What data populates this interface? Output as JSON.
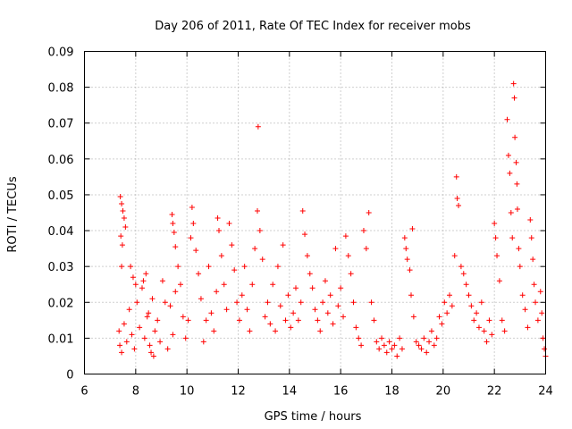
{
  "chart_data": {
    "type": "scatter",
    "title": "Day 206 of 2011, Rate Of TEC Index for receiver mobs",
    "xlabel": "GPS time / hours",
    "ylabel": "ROTI / TECUs",
    "xlim": [
      6,
      24
    ],
    "ylim": [
      0,
      0.09
    ],
    "xticks": [
      6,
      8,
      10,
      12,
      14,
      16,
      18,
      20,
      22,
      24
    ],
    "yticks": [
      0,
      0.01,
      0.02,
      0.03,
      0.04,
      0.05,
      0.06,
      0.07,
      0.08,
      0.09
    ],
    "xtick_labels": [
      "6",
      "8",
      "10",
      "12",
      "14",
      "16",
      "18",
      "20",
      "22",
      "24"
    ],
    "ytick_labels": [
      "0",
      "0.01",
      "0.02",
      "0.03",
      "0.04",
      "0.05",
      "0.06",
      "0.07",
      "0.08",
      "0.09"
    ],
    "grid": true,
    "marker": "+",
    "color": "#ff0000",
    "series": [
      {
        "name": "mobs",
        "points": [
          [
            7.4,
            0.0495
          ],
          [
            7.45,
            0.0475
          ],
          [
            7.5,
            0.0455
          ],
          [
            7.55,
            0.0435
          ],
          [
            7.6,
            0.041
          ],
          [
            7.42,
            0.0385
          ],
          [
            7.48,
            0.036
          ],
          [
            7.45,
            0.03
          ],
          [
            7.35,
            0.012
          ],
          [
            7.38,
            0.008
          ],
          [
            7.45,
            0.006
          ],
          [
            7.55,
            0.014
          ],
          [
            7.65,
            0.009
          ],
          [
            7.75,
            0.018
          ],
          [
            7.85,
            0.011
          ],
          [
            7.95,
            0.007
          ],
          [
            8.05,
            0.02
          ],
          [
            8.15,
            0.013
          ],
          [
            8.25,
            0.024
          ],
          [
            8.35,
            0.01
          ],
          [
            8.45,
            0.016
          ],
          [
            8.55,
            0.008
          ],
          [
            8.65,
            0.021
          ],
          [
            8.75,
            0.012
          ],
          [
            7.8,
            0.03
          ],
          [
            7.9,
            0.027
          ],
          [
            8.0,
            0.025
          ],
          [
            8.3,
            0.026
          ],
          [
            8.4,
            0.028
          ],
          [
            8.5,
            0.017
          ],
          [
            8.6,
            0.006
          ],
          [
            8.7,
            0.005
          ],
          [
            8.85,
            0.015
          ],
          [
            8.95,
            0.009
          ],
          [
            9.05,
            0.026
          ],
          [
            9.15,
            0.02
          ],
          [
            9.25,
            0.007
          ],
          [
            9.35,
            0.019
          ],
          [
            9.45,
            0.011
          ],
          [
            9.55,
            0.023
          ],
          [
            9.42,
            0.0445
          ],
          [
            9.45,
            0.042
          ],
          [
            9.5,
            0.0395
          ],
          [
            9.55,
            0.0355
          ],
          [
            9.65,
            0.03
          ],
          [
            9.75,
            0.025
          ],
          [
            9.85,
            0.016
          ],
          [
            9.95,
            0.01
          ],
          [
            10.05,
            0.015
          ],
          [
            10.15,
            0.038
          ],
          [
            10.2,
            0.0465
          ],
          [
            10.25,
            0.042
          ],
          [
            10.35,
            0.0345
          ],
          [
            10.45,
            0.028
          ],
          [
            10.55,
            0.021
          ],
          [
            10.65,
            0.009
          ],
          [
            10.75,
            0.015
          ],
          [
            10.85,
            0.03
          ],
          [
            10.95,
            0.017
          ],
          [
            11.05,
            0.012
          ],
          [
            11.15,
            0.023
          ],
          [
            11.2,
            0.0435
          ],
          [
            11.25,
            0.04
          ],
          [
            11.35,
            0.033
          ],
          [
            11.45,
            0.025
          ],
          [
            11.55,
            0.018
          ],
          [
            11.65,
            0.042
          ],
          [
            11.75,
            0.036
          ],
          [
            11.85,
            0.029
          ],
          [
            11.95,
            0.02
          ],
          [
            12.05,
            0.015
          ],
          [
            12.15,
            0.022
          ],
          [
            12.25,
            0.03
          ],
          [
            12.35,
            0.018
          ],
          [
            12.45,
            0.012
          ],
          [
            12.55,
            0.025
          ],
          [
            12.65,
            0.035
          ],
          [
            12.75,
            0.0455
          ],
          [
            12.78,
            0.069
          ],
          [
            12.85,
            0.04
          ],
          [
            12.95,
            0.032
          ],
          [
            13.05,
            0.016
          ],
          [
            13.15,
            0.02
          ],
          [
            13.25,
            0.014
          ],
          [
            13.35,
            0.025
          ],
          [
            13.45,
            0.012
          ],
          [
            13.55,
            0.03
          ],
          [
            13.65,
            0.019
          ],
          [
            13.75,
            0.036
          ],
          [
            13.85,
            0.015
          ],
          [
            13.95,
            0.022
          ],
          [
            14.05,
            0.013
          ],
          [
            14.15,
            0.017
          ],
          [
            14.25,
            0.024
          ],
          [
            14.35,
            0.015
          ],
          [
            14.45,
            0.02
          ],
          [
            14.52,
            0.0455
          ],
          [
            14.6,
            0.039
          ],
          [
            14.7,
            0.033
          ],
          [
            14.8,
            0.028
          ],
          [
            14.9,
            0.024
          ],
          [
            15.0,
            0.018
          ],
          [
            15.1,
            0.015
          ],
          [
            15.2,
            0.012
          ],
          [
            15.3,
            0.02
          ],
          [
            15.4,
            0.026
          ],
          [
            15.5,
            0.017
          ],
          [
            15.6,
            0.022
          ],
          [
            15.7,
            0.014
          ],
          [
            15.8,
            0.035
          ],
          [
            15.9,
            0.019
          ],
          [
            16.0,
            0.024
          ],
          [
            16.1,
            0.016
          ],
          [
            16.2,
            0.0385
          ],
          [
            16.3,
            0.033
          ],
          [
            16.4,
            0.028
          ],
          [
            16.5,
            0.02
          ],
          [
            16.6,
            0.013
          ],
          [
            16.7,
            0.01
          ],
          [
            16.8,
            0.008
          ],
          [
            16.9,
            0.04
          ],
          [
            17.0,
            0.035
          ],
          [
            17.1,
            0.045
          ],
          [
            17.2,
            0.02
          ],
          [
            17.3,
            0.015
          ],
          [
            17.4,
            0.009
          ],
          [
            17.5,
            0.007
          ],
          [
            17.6,
            0.01
          ],
          [
            17.7,
            0.008
          ],
          [
            17.8,
            0.006
          ],
          [
            17.9,
            0.009
          ],
          [
            18.0,
            0.007
          ],
          [
            18.1,
            0.008
          ],
          [
            18.2,
            0.005
          ],
          [
            18.3,
            0.01
          ],
          [
            18.4,
            0.007
          ],
          [
            18.5,
            0.038
          ],
          [
            18.55,
            0.035
          ],
          [
            18.6,
            0.032
          ],
          [
            18.7,
            0.029
          ],
          [
            18.8,
            0.0405
          ],
          [
            18.75,
            0.022
          ],
          [
            18.85,
            0.016
          ],
          [
            18.95,
            0.009
          ],
          [
            19.05,
            0.008
          ],
          [
            19.15,
            0.007
          ],
          [
            19.25,
            0.01
          ],
          [
            19.35,
            0.006
          ],
          [
            19.45,
            0.009
          ],
          [
            19.55,
            0.012
          ],
          [
            19.65,
            0.008
          ],
          [
            19.75,
            0.01
          ],
          [
            19.85,
            0.016
          ],
          [
            19.95,
            0.014
          ],
          [
            20.05,
            0.02
          ],
          [
            20.15,
            0.017
          ],
          [
            20.25,
            0.022
          ],
          [
            20.35,
            0.019
          ],
          [
            20.45,
            0.033
          ],
          [
            20.52,
            0.055
          ],
          [
            20.55,
            0.049
          ],
          [
            20.6,
            0.047
          ],
          [
            20.7,
            0.03
          ],
          [
            20.8,
            0.028
          ],
          [
            20.9,
            0.025
          ],
          [
            21.0,
            0.022
          ],
          [
            21.1,
            0.019
          ],
          [
            21.2,
            0.015
          ],
          [
            21.3,
            0.017
          ],
          [
            21.4,
            0.013
          ],
          [
            21.5,
            0.02
          ],
          [
            21.6,
            0.012
          ],
          [
            21.7,
            0.009
          ],
          [
            21.8,
            0.015
          ],
          [
            21.9,
            0.011
          ],
          [
            22.0,
            0.042
          ],
          [
            22.05,
            0.038
          ],
          [
            22.1,
            0.033
          ],
          [
            22.2,
            0.026
          ],
          [
            22.3,
            0.015
          ],
          [
            22.4,
            0.012
          ],
          [
            22.5,
            0.071
          ],
          [
            22.55,
            0.061
          ],
          [
            22.6,
            0.056
          ],
          [
            22.65,
            0.045
          ],
          [
            22.7,
            0.038
          ],
          [
            22.75,
            0.081
          ],
          [
            22.78,
            0.077
          ],
          [
            22.8,
            0.066
          ],
          [
            22.85,
            0.059
          ],
          [
            22.88,
            0.053
          ],
          [
            22.9,
            0.046
          ],
          [
            22.95,
            0.035
          ],
          [
            23.0,
            0.03
          ],
          [
            23.1,
            0.022
          ],
          [
            23.2,
            0.018
          ],
          [
            23.3,
            0.013
          ],
          [
            23.4,
            0.043
          ],
          [
            23.45,
            0.038
          ],
          [
            23.5,
            0.032
          ],
          [
            23.55,
            0.025
          ],
          [
            23.6,
            0.02
          ],
          [
            23.7,
            0.015
          ],
          [
            23.8,
            0.023
          ],
          [
            23.85,
            0.017
          ],
          [
            23.9,
            0.01
          ],
          [
            23.95,
            0.007
          ],
          [
            24.0,
            0.005
          ]
        ]
      }
    ]
  }
}
